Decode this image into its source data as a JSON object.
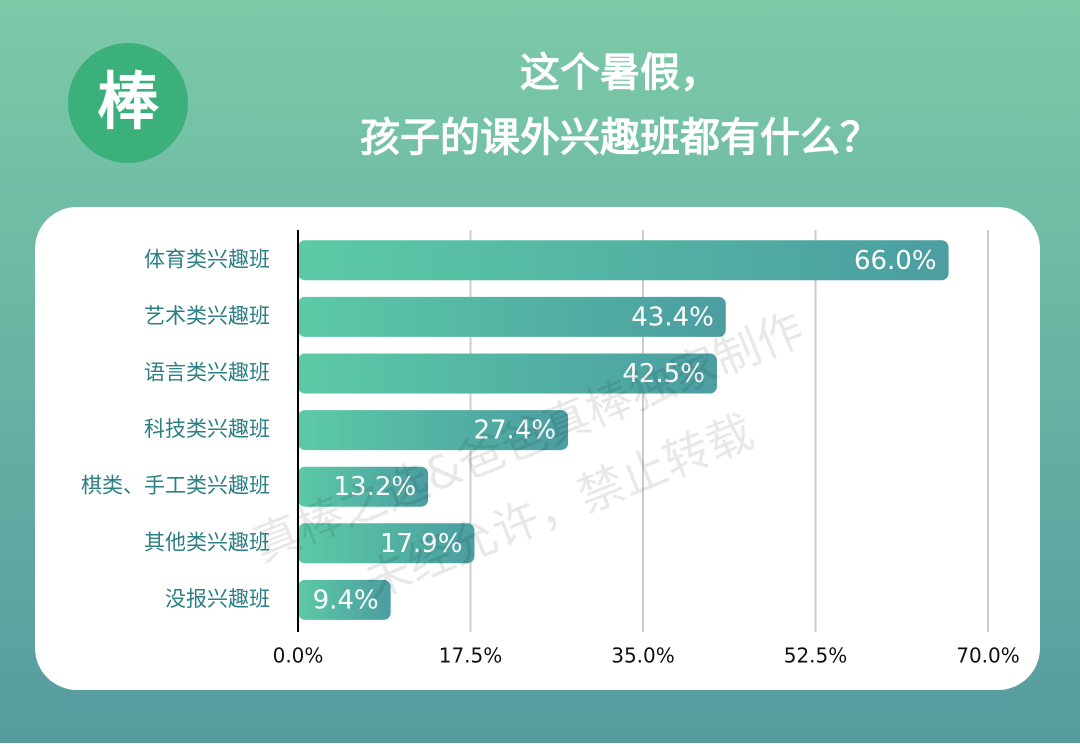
{
  "chart_data": {
    "type": "bar",
    "orientation": "horizontal",
    "logo": "棒",
    "title": [
      "这个暑假，",
      "孩子的课外兴趣班都有什么？"
    ],
    "watermark": [
      "真棒之选&爸爸真棒独家制作",
      "未经允许，禁止转载"
    ],
    "categories": [
      "体育类兴趣班",
      "艺术类兴趣班",
      "语言类兴趣班",
      "科技类兴趣班",
      "棋类、手工类兴趣班",
      "其他类兴趣班",
      "没报兴趣班"
    ],
    "values": [
      66.0,
      43.4,
      42.5,
      27.4,
      13.2,
      17.9,
      9.4
    ],
    "value_labels": [
      "66.0%",
      "43.4%",
      "42.5%",
      "27.4%",
      "13.2%",
      "17.9%",
      "9.4%"
    ],
    "color": [
      "#5ccaa6",
      "#4b9da1"
    ],
    "xlim": [
      0,
      70
    ],
    "xticks": [
      {
        "value": 0,
        "label": "0.0%"
      },
      {
        "value": 17.5,
        "label": "17.5%"
      },
      {
        "value": 35,
        "label": "35.0%"
      },
      {
        "value": 52.5,
        "label": "52.5%"
      },
      {
        "value": 70,
        "label": "70.0%"
      }
    ],
    "grid": true
  }
}
